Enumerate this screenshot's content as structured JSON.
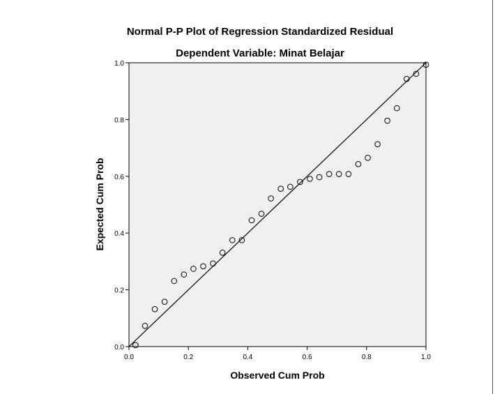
{
  "chart_data": {
    "type": "scatter",
    "title": "Normal P-P Plot of Regression Standardized Residual",
    "subtitle": "Dependent Variable: Minat Belajar",
    "xlabel": "Observed Cum Prob",
    "ylabel": "Expected Cum Prob",
    "xlim": [
      0.0,
      1.0
    ],
    "ylim": [
      0.0,
      1.0
    ],
    "x_ticks": [
      "0.0",
      "0.2",
      "0.4",
      "0.6",
      "0.8",
      "1.0"
    ],
    "y_ticks": [
      "0.0",
      "0.2",
      "0.4",
      "0.6",
      "0.8",
      "1.0"
    ],
    "reference_line": {
      "from": [
        0.0,
        0.0
      ],
      "to": [
        1.0,
        1.0
      ]
    },
    "grid": false,
    "legend": "none",
    "colors": {
      "plot_background": "#f0f0f0",
      "marker": "#000000",
      "line": "#000000"
    },
    "points": [
      {
        "x": 0.022,
        "y": 0.005
      },
      {
        "x": 0.054,
        "y": 0.073
      },
      {
        "x": 0.087,
        "y": 0.132
      },
      {
        "x": 0.12,
        "y": 0.158
      },
      {
        "x": 0.152,
        "y": 0.231
      },
      {
        "x": 0.185,
        "y": 0.254
      },
      {
        "x": 0.217,
        "y": 0.274
      },
      {
        "x": 0.25,
        "y": 0.283
      },
      {
        "x": 0.283,
        "y": 0.293
      },
      {
        "x": 0.315,
        "y": 0.331
      },
      {
        "x": 0.348,
        "y": 0.375
      },
      {
        "x": 0.38,
        "y": 0.375
      },
      {
        "x": 0.413,
        "y": 0.445
      },
      {
        "x": 0.446,
        "y": 0.468
      },
      {
        "x": 0.478,
        "y": 0.522
      },
      {
        "x": 0.511,
        "y": 0.556
      },
      {
        "x": 0.543,
        "y": 0.563
      },
      {
        "x": 0.576,
        "y": 0.58
      },
      {
        "x": 0.609,
        "y": 0.591
      },
      {
        "x": 0.641,
        "y": 0.597
      },
      {
        "x": 0.674,
        "y": 0.608
      },
      {
        "x": 0.707,
        "y": 0.608
      },
      {
        "x": 0.739,
        "y": 0.608
      },
      {
        "x": 0.772,
        "y": 0.643
      },
      {
        "x": 0.804,
        "y": 0.665
      },
      {
        "x": 0.837,
        "y": 0.713
      },
      {
        "x": 0.87,
        "y": 0.796
      },
      {
        "x": 0.902,
        "y": 0.84
      },
      {
        "x": 0.935,
        "y": 0.943
      },
      {
        "x": 0.967,
        "y": 0.961
      },
      {
        "x": 1.0,
        "y": 0.993
      }
    ]
  }
}
